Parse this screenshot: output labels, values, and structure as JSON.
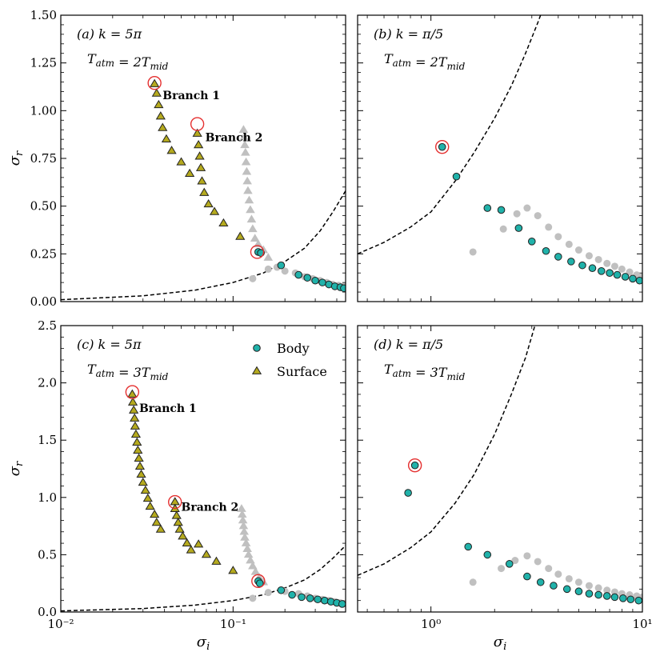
{
  "figure": {
    "xlabel": "σ_i",
    "ylabel": "σ_r"
  },
  "legend": {
    "body": "Body",
    "surface": "Surface",
    "colors": {
      "body": "#20b2aa",
      "surface": "#b5aa1e",
      "ghost": "#c0c0c0",
      "highlight": "#e53030"
    }
  },
  "chart_data": [
    {
      "panel": "a",
      "type": "scatter",
      "tag": "(a)",
      "k_label": "k = 5π",
      "t_label": "T_atm = 2T_mid",
      "xscale": "log",
      "xlim": [
        0.01,
        0.45
      ],
      "ylim": [
        0,
        1.5
      ],
      "yticks": [
        0,
        0.25,
        0.5,
        0.75,
        1.0,
        1.25,
        1.5
      ],
      "ytick_labels": [
        "0.00",
        "0.25",
        "0.50",
        "0.75",
        "1.00",
        "1.25",
        "1.50"
      ],
      "xticks": [
        0.01,
        0.1
      ],
      "xtick_labels": [
        "",
        ""
      ],
      "body": [
        [
          0.14,
          0.26
        ],
        [
          0.145,
          0.255
        ],
        [
          0.19,
          0.19
        ],
        [
          0.24,
          0.14
        ],
        [
          0.27,
          0.125
        ],
        [
          0.3,
          0.11
        ],
        [
          0.33,
          0.1
        ],
        [
          0.36,
          0.09
        ],
        [
          0.39,
          0.08
        ],
        [
          0.42,
          0.075
        ],
        [
          0.44,
          0.07
        ]
      ],
      "surface": [
        [
          0.035,
          1.14
        ],
        [
          0.036,
          1.09
        ],
        [
          0.037,
          1.03
        ],
        [
          0.038,
          0.97
        ],
        [
          0.039,
          0.91
        ],
        [
          0.041,
          0.85
        ],
        [
          0.044,
          0.79
        ],
        [
          0.05,
          0.73
        ],
        [
          0.056,
          0.67
        ],
        [
          0.062,
          0.88
        ],
        [
          0.063,
          0.82
        ],
        [
          0.064,
          0.76
        ],
        [
          0.065,
          0.7
        ],
        [
          0.066,
          0.63
        ],
        [
          0.068,
          0.57
        ],
        [
          0.072,
          0.51
        ],
        [
          0.078,
          0.47
        ],
        [
          0.088,
          0.41
        ],
        [
          0.11,
          0.34
        ]
      ],
      "ghost_triangles": [
        [
          0.115,
          0.9
        ],
        [
          0.116,
          0.86
        ],
        [
          0.117,
          0.82
        ],
        [
          0.118,
          0.78
        ],
        [
          0.119,
          0.73
        ],
        [
          0.12,
          0.68
        ],
        [
          0.121,
          0.63
        ],
        [
          0.122,
          0.58
        ],
        [
          0.124,
          0.53
        ],
        [
          0.126,
          0.48
        ],
        [
          0.128,
          0.43
        ],
        [
          0.13,
          0.38
        ],
        [
          0.134,
          0.33
        ],
        [
          0.14,
          0.3
        ],
        [
          0.15,
          0.27
        ],
        [
          0.16,
          0.23
        ]
      ],
      "ghost_circles": [
        [
          0.13,
          0.12
        ],
        [
          0.16,
          0.17
        ],
        [
          0.18,
          0.18
        ],
        [
          0.2,
          0.16
        ],
        [
          0.23,
          0.15
        ],
        [
          0.26,
          0.13
        ],
        [
          0.29,
          0.12
        ],
        [
          0.32,
          0.11
        ],
        [
          0.35,
          0.1
        ],
        [
          0.38,
          0.09
        ],
        [
          0.41,
          0.085
        ],
        [
          0.44,
          0.08
        ]
      ],
      "highlights": [
        [
          0.035,
          1.145
        ],
        [
          0.062,
          0.93
        ],
        [
          0.138,
          0.26
        ]
      ],
      "branch_labels": [
        {
          "text": "Branch 1",
          "x": 0.039,
          "y": 1.08
        },
        {
          "text": "Branch 2",
          "x": 0.069,
          "y": 0.86
        }
      ],
      "critical_curve": [
        [
          0.01,
          0.01
        ],
        [
          0.03,
          0.03
        ],
        [
          0.06,
          0.06
        ],
        [
          0.1,
          0.1
        ],
        [
          0.15,
          0.15
        ],
        [
          0.2,
          0.21
        ],
        [
          0.26,
          0.28
        ],
        [
          0.32,
          0.37
        ],
        [
          0.38,
          0.47
        ],
        [
          0.45,
          0.58
        ]
      ],
      "legend": false
    },
    {
      "panel": "b",
      "type": "scatter",
      "tag": "(b)",
      "k_label": "k = π/5",
      "t_label": "T_atm = 2T_mid",
      "xscale": "log",
      "xlim": [
        0.45,
        10
      ],
      "ylim": [
        0,
        1.5
      ],
      "yticks": [
        0,
        0.25,
        0.5,
        0.75,
        1.0,
        1.25,
        1.5
      ],
      "ytick_labels": [
        "",
        "",
        "",
        "",
        "",
        "",
        ""
      ],
      "xticks": [
        1,
        10
      ],
      "xtick_labels": [
        "",
        ""
      ],
      "body": [
        [
          1.13,
          0.81
        ],
        [
          1.32,
          0.655
        ],
        [
          1.85,
          0.49
        ],
        [
          2.15,
          0.48
        ],
        [
          2.6,
          0.385
        ],
        [
          3.0,
          0.315
        ],
        [
          3.5,
          0.265
        ],
        [
          4.0,
          0.235
        ],
        [
          4.6,
          0.21
        ],
        [
          5.2,
          0.19
        ],
        [
          5.8,
          0.175
        ],
        [
          6.4,
          0.16
        ],
        [
          7.0,
          0.15
        ],
        [
          7.6,
          0.14
        ],
        [
          8.3,
          0.13
        ],
        [
          9.0,
          0.12
        ],
        [
          9.7,
          0.11
        ]
      ],
      "surface": [],
      "ghost_triangles": [],
      "ghost_circles": [
        [
          1.58,
          0.26
        ],
        [
          2.2,
          0.38
        ],
        [
          2.55,
          0.46
        ],
        [
          2.85,
          0.49
        ],
        [
          3.2,
          0.45
        ],
        [
          3.6,
          0.39
        ],
        [
          4.0,
          0.34
        ],
        [
          4.5,
          0.3
        ],
        [
          5.0,
          0.27
        ],
        [
          5.6,
          0.24
        ],
        [
          6.2,
          0.22
        ],
        [
          6.8,
          0.2
        ],
        [
          7.4,
          0.185
        ],
        [
          8.0,
          0.17
        ],
        [
          8.7,
          0.155
        ],
        [
          9.4,
          0.14
        ],
        [
          10.0,
          0.13
        ]
      ],
      "highlights": [
        [
          1.13,
          0.81
        ]
      ],
      "branch_labels": [],
      "critical_curve": [
        [
          0.45,
          0.25
        ],
        [
          0.6,
          0.31
        ],
        [
          0.8,
          0.39
        ],
        [
          1.0,
          0.47
        ],
        [
          1.3,
          0.63
        ],
        [
          1.6,
          0.78
        ],
        [
          2.0,
          0.96
        ],
        [
          2.4,
          1.13
        ],
        [
          2.8,
          1.3
        ],
        [
          3.2,
          1.46
        ],
        [
          3.3,
          1.5
        ]
      ],
      "legend": false
    },
    {
      "panel": "c",
      "type": "scatter",
      "tag": "(c)",
      "k_label": "k = 5π",
      "t_label": "T_atm = 3T_mid",
      "xscale": "log",
      "xlim": [
        0.01,
        0.45
      ],
      "ylim": [
        0,
        2.5
      ],
      "yticks": [
        0,
        0.5,
        1.0,
        1.5,
        2.0,
        2.5
      ],
      "ytick_labels": [
        "0.0",
        "0.5",
        "1.0",
        "1.5",
        "2.0",
        "2.5"
      ],
      "xticks": [
        0.01,
        0.1
      ],
      "xtick_labels": [
        "10⁻²",
        "10⁻¹"
      ],
      "body": [
        [
          0.14,
          0.27
        ],
        [
          0.143,
          0.25
        ],
        [
          0.19,
          0.19
        ],
        [
          0.22,
          0.15
        ],
        [
          0.25,
          0.13
        ],
        [
          0.28,
          0.12
        ],
        [
          0.31,
          0.11
        ],
        [
          0.34,
          0.1
        ],
        [
          0.37,
          0.09
        ],
        [
          0.4,
          0.08
        ],
        [
          0.43,
          0.07
        ]
      ],
      "surface": [
        [
          0.026,
          1.9
        ],
        [
          0.0262,
          1.83
        ],
        [
          0.0265,
          1.76
        ],
        [
          0.0268,
          1.69
        ],
        [
          0.027,
          1.62
        ],
        [
          0.0273,
          1.55
        ],
        [
          0.0277,
          1.48
        ],
        [
          0.028,
          1.41
        ],
        [
          0.0284,
          1.34
        ],
        [
          0.0288,
          1.27
        ],
        [
          0.0293,
          1.2
        ],
        [
          0.03,
          1.13
        ],
        [
          0.031,
          1.06
        ],
        [
          0.032,
          0.99
        ],
        [
          0.033,
          0.92
        ],
        [
          0.035,
          0.85
        ],
        [
          0.036,
          0.78
        ],
        [
          0.038,
          0.72
        ],
        [
          0.046,
          0.96
        ],
        [
          0.046,
          0.9
        ],
        [
          0.047,
          0.84
        ],
        [
          0.048,
          0.78
        ],
        [
          0.049,
          0.72
        ],
        [
          0.051,
          0.66
        ],
        [
          0.054,
          0.6
        ],
        [
          0.057,
          0.54
        ],
        [
          0.063,
          0.59
        ],
        [
          0.07,
          0.5
        ],
        [
          0.08,
          0.44
        ],
        [
          0.1,
          0.36
        ]
      ],
      "ghost_triangles": [
        [
          0.112,
          0.9
        ],
        [
          0.113,
          0.85
        ],
        [
          0.114,
          0.8
        ],
        [
          0.115,
          0.75
        ],
        [
          0.116,
          0.7
        ],
        [
          0.117,
          0.65
        ],
        [
          0.119,
          0.6
        ],
        [
          0.121,
          0.55
        ],
        [
          0.123,
          0.5
        ],
        [
          0.126,
          0.45
        ],
        [
          0.13,
          0.4
        ],
        [
          0.135,
          0.35
        ],
        [
          0.142,
          0.3
        ],
        [
          0.15,
          0.26
        ]
      ],
      "ghost_circles": [
        [
          0.13,
          0.12
        ],
        [
          0.16,
          0.17
        ],
        [
          0.2,
          0.18
        ],
        [
          0.24,
          0.16
        ],
        [
          0.27,
          0.14
        ],
        [
          0.3,
          0.12
        ],
        [
          0.33,
          0.11
        ],
        [
          0.36,
          0.1
        ],
        [
          0.39,
          0.09
        ],
        [
          0.42,
          0.08
        ],
        [
          0.45,
          0.075
        ]
      ],
      "highlights": [
        [
          0.026,
          1.92
        ],
        [
          0.046,
          0.96
        ],
        [
          0.14,
          0.27
        ]
      ],
      "branch_labels": [
        {
          "text": "Branch 1",
          "x": 0.0285,
          "y": 1.78
        },
        {
          "text": "Branch 2",
          "x": 0.05,
          "y": 0.92
        }
      ],
      "critical_curve": [
        [
          0.01,
          0.01
        ],
        [
          0.03,
          0.03
        ],
        [
          0.06,
          0.06
        ],
        [
          0.1,
          0.1
        ],
        [
          0.15,
          0.15
        ],
        [
          0.2,
          0.21
        ],
        [
          0.26,
          0.28
        ],
        [
          0.32,
          0.37
        ],
        [
          0.38,
          0.47
        ],
        [
          0.45,
          0.58
        ]
      ],
      "legend": true
    },
    {
      "panel": "d",
      "type": "scatter",
      "tag": "(d)",
      "k_label": "k = π/5",
      "t_label": "T_atm = 3T_mid",
      "xscale": "log",
      "xlim": [
        0.45,
        10
      ],
      "ylim": [
        0,
        2.5
      ],
      "yticks": [
        0,
        0.5,
        1.0,
        1.5,
        2.0,
        2.5
      ],
      "ytick_labels": [
        "",
        "",
        "",
        "",
        "",
        ""
      ],
      "xticks": [
        1,
        10
      ],
      "xtick_labels": [
        "10⁰",
        "10¹"
      ],
      "body": [
        [
          0.78,
          1.04
        ],
        [
          0.84,
          1.28
        ],
        [
          1.5,
          0.57
        ],
        [
          1.85,
          0.5
        ],
        [
          2.35,
          0.42
        ],
        [
          2.85,
          0.31
        ],
        [
          3.3,
          0.26
        ],
        [
          3.8,
          0.23
        ],
        [
          4.4,
          0.2
        ],
        [
          5.0,
          0.18
        ],
        [
          5.6,
          0.16
        ],
        [
          6.2,
          0.15
        ],
        [
          6.8,
          0.14
        ],
        [
          7.4,
          0.13
        ],
        [
          8.1,
          0.12
        ],
        [
          8.8,
          0.11
        ],
        [
          9.6,
          0.1
        ]
      ],
      "surface": [],
      "ghost_triangles": [],
      "ghost_circles": [
        [
          1.58,
          0.26
        ],
        [
          2.15,
          0.38
        ],
        [
          2.5,
          0.45
        ],
        [
          2.85,
          0.49
        ],
        [
          3.2,
          0.44
        ],
        [
          3.6,
          0.38
        ],
        [
          4.0,
          0.33
        ],
        [
          4.5,
          0.29
        ],
        [
          5.0,
          0.26
        ],
        [
          5.6,
          0.23
        ],
        [
          6.2,
          0.21
        ],
        [
          6.8,
          0.19
        ],
        [
          7.4,
          0.175
        ],
        [
          8.0,
          0.16
        ],
        [
          8.7,
          0.15
        ],
        [
          9.4,
          0.14
        ],
        [
          10.0,
          0.13
        ]
      ],
      "highlights": [
        [
          0.84,
          1.28
        ]
      ],
      "branch_labels": [],
      "critical_curve": [
        [
          0.45,
          0.32
        ],
        [
          0.6,
          0.42
        ],
        [
          0.8,
          0.56
        ],
        [
          1.0,
          0.7
        ],
        [
          1.3,
          0.95
        ],
        [
          1.6,
          1.2
        ],
        [
          2.0,
          1.55
        ],
        [
          2.4,
          1.9
        ],
        [
          2.8,
          2.22
        ],
        [
          3.1,
          2.5
        ]
      ],
      "legend": false
    }
  ]
}
